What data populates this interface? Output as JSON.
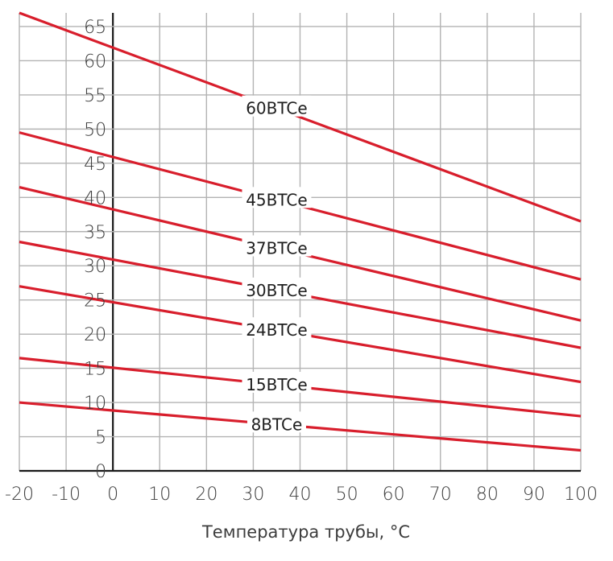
{
  "chart_data": {
    "type": "line",
    "xlabel": "Температура трубы, °C",
    "ylabel": "",
    "xlim": [
      -20,
      100
    ],
    "ylim": [
      0,
      67
    ],
    "x_ticks": [
      "-20",
      "-10",
      "0",
      "10",
      "20",
      "30",
      "40",
      "50",
      "60",
      "70",
      "80",
      "90",
      "100"
    ],
    "y_ticks": [
      "0",
      "5",
      "10",
      "15",
      "20",
      "25",
      "30",
      "35",
      "40",
      "45",
      "50",
      "55",
      "60",
      "65"
    ],
    "grid": true,
    "line_color": "#d81e2c",
    "series": [
      {
        "name": "60BTCe",
        "x": [
          -20,
          100
        ],
        "y": [
          67,
          36.5
        ]
      },
      {
        "name": "45BTCe",
        "x": [
          -20,
          100
        ],
        "y": [
          49.5,
          28
        ]
      },
      {
        "name": "37BTCe",
        "x": [
          -20,
          100
        ],
        "y": [
          41.5,
          22
        ]
      },
      {
        "name": "30BTCe",
        "x": [
          -20,
          100
        ],
        "y": [
          33.5,
          18
        ]
      },
      {
        "name": "24BTCe",
        "x": [
          -20,
          100
        ],
        "y": [
          27,
          13
        ]
      },
      {
        "name": "15BTCe",
        "x": [
          -20,
          100
        ],
        "y": [
          16.5,
          8
        ]
      },
      {
        "name": "8BTCe",
        "x": [
          -20,
          100
        ],
        "y": [
          10,
          3
        ]
      }
    ]
  }
}
